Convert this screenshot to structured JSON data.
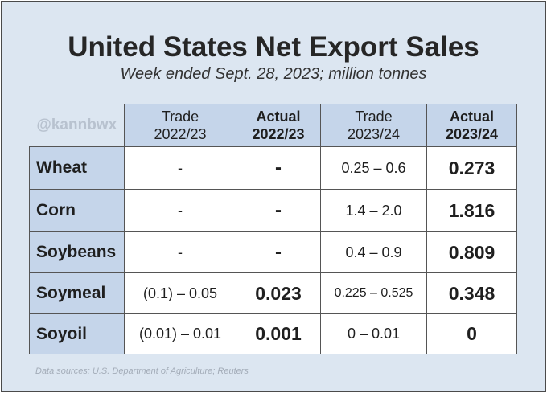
{
  "title": "United States Net Export Sales",
  "subtitle": "Week ended Sept. 28, 2023; million tonnes",
  "handle": "@kannbwx",
  "columns": [
    {
      "line1": "Trade",
      "line2": "2022/23"
    },
    {
      "line1": "Actual",
      "line2": "2022/23"
    },
    {
      "line1": "Trade",
      "line2": "2023/24"
    },
    {
      "line1": "Actual",
      "line2": "2023/24"
    }
  ],
  "rows": [
    {
      "label": "Wheat",
      "values": [
        "-",
        "-",
        "0.25 – 0.6",
        "0.273"
      ]
    },
    {
      "label": "Corn",
      "values": [
        "-",
        "-",
        "1.4 – 2.0",
        "1.816"
      ]
    },
    {
      "label": "Soybeans",
      "values": [
        "-",
        "-",
        "0.4 – 0.9",
        "0.809"
      ]
    },
    {
      "label": "Soymeal",
      "values": [
        "(0.1) – 0.05",
        "0.023",
        "0.225 – 0.525",
        "0.348"
      ]
    },
    {
      "label": "Soyoil",
      "values": [
        "(0.01) – 0.01",
        "0.001",
        "0 – 0.01",
        "0"
      ]
    }
  ],
  "source": "Data sources: U.S. Department of Agriculture; Reuters",
  "colors": {
    "background": "#dce6f1",
    "header_fill": "#c5d5ea",
    "cell_fill": "#ffffff",
    "border": "#555555"
  }
}
